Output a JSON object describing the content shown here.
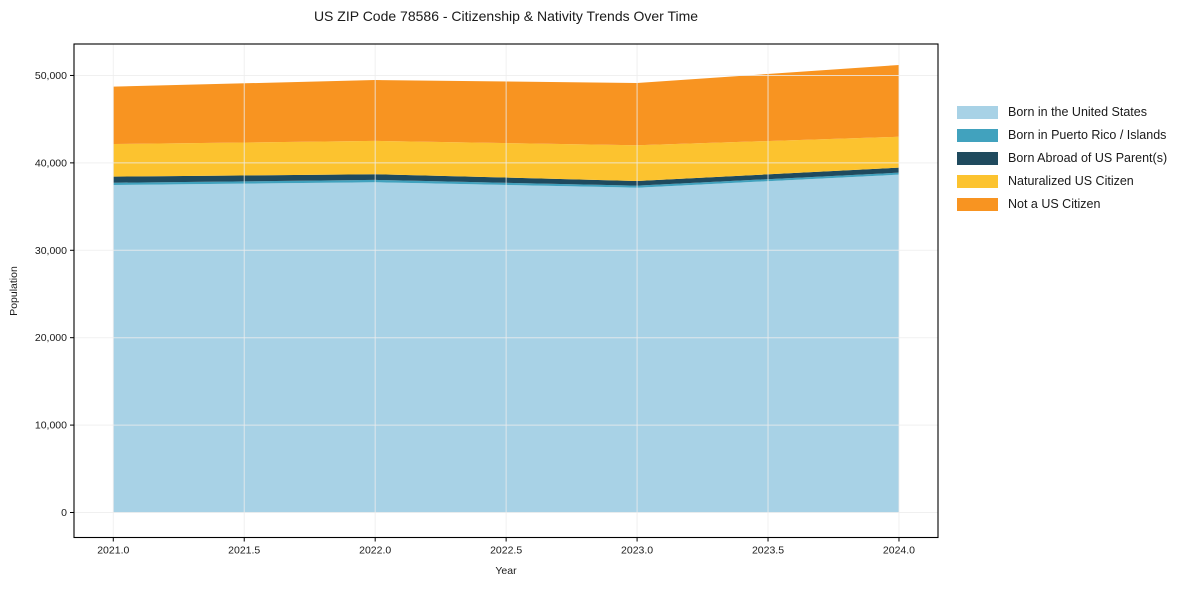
{
  "chart_data": {
    "type": "area",
    "stacked": true,
    "title": "US ZIP Code 78586 - Citizenship & Nativity Trends Over Time",
    "xlabel": "Year",
    "ylabel": "Population",
    "x": [
      2021,
      2022,
      2023,
      2024
    ],
    "series": [
      {
        "name": "Born in the United States",
        "color": "#a8d2e6",
        "values": [
          37470,
          37780,
          37160,
          38650
        ]
      },
      {
        "name": "Born in Puerto Rico / Islands",
        "color": "#41a2be",
        "values": [
          260,
          270,
          230,
          230
        ]
      },
      {
        "name": "Born Abroad of US Parent(s)",
        "color": "#1f4a5e",
        "values": [
          690,
          650,
          540,
          570
        ]
      },
      {
        "name": "Naturalized US Citizen",
        "color": "#fcc32f",
        "values": [
          3740,
          3810,
          4080,
          3540
        ]
      },
      {
        "name": "Not a US Citizen",
        "color": "#f89421",
        "values": [
          6560,
          6970,
          7130,
          8210
        ]
      }
    ],
    "x_ticks": [
      "2021.0",
      "2021.5",
      "2022.0",
      "2022.5",
      "2023.0",
      "2023.5",
      "2024.0"
    ],
    "x_tick_values": [
      2021,
      2021.5,
      2022,
      2022.5,
      2023,
      2023.5,
      2024
    ],
    "y_ticks": [
      "0",
      "10,000",
      "20,000",
      "30,000",
      "40,000",
      "50,000"
    ],
    "y_tick_values": [
      0,
      10000,
      20000,
      30000,
      40000,
      50000
    ],
    "xlim": [
      2020.85,
      2024.149
    ],
    "ylim": [
      -2860,
      53600
    ],
    "grid": true,
    "legend_position": "right",
    "colors": {
      "background": "#ffffff",
      "gridline": "#ececec",
      "spine": "#000000",
      "text": "#1a1a1a"
    }
  }
}
